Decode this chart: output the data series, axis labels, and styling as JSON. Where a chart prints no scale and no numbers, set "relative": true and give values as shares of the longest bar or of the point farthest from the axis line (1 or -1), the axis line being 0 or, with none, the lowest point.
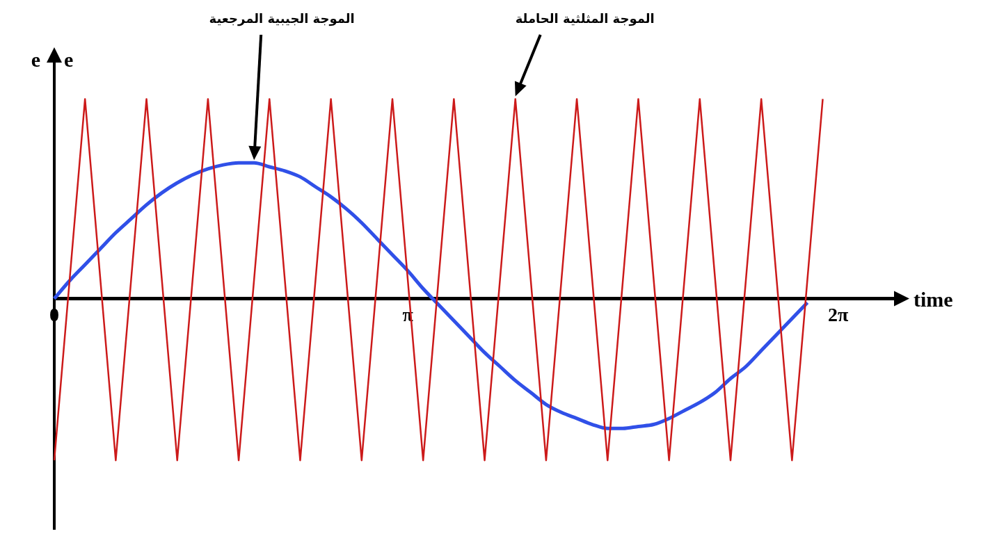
{
  "chart_data": {
    "type": "line",
    "relative": true,
    "xlabel": "time",
    "ylabel": "e",
    "categories": [
      "0",
      null,
      null,
      null,
      null,
      null,
      null,
      null,
      null,
      null,
      null,
      null,
      null,
      null,
      null,
      null,
      null,
      null,
      null,
      null,
      null,
      null,
      null,
      "π",
      null,
      null,
      null,
      null,
      null,
      null,
      null,
      null,
      null,
      null,
      null,
      null,
      null,
      null,
      null,
      null,
      null,
      null,
      null,
      null,
      null,
      null,
      null,
      null,
      null,
      null,
      null,
      "2π",
      null,
      null,
      null,
      null
    ],
    "grid": false,
    "legend": false,
    "marker": "none",
    "line_style": "solid",
    "series": [
      {
        "color": "#cc1a1a",
        "values": [
          -0.81,
          0.095,
          1,
          0.095,
          -0.81,
          0.095,
          1,
          0.095,
          -0.81,
          0.095,
          1,
          0.095,
          -0.81,
          0.095,
          1,
          0.095,
          -0.81,
          0.095,
          1,
          0.095,
          -0.81,
          0.095,
          1,
          0.095,
          -0.81,
          0.095,
          1,
          0.095,
          -0.81,
          0.095,
          1,
          0.095,
          -0.81,
          0.095,
          1,
          0.095,
          -0.81,
          0.095,
          1,
          0.095,
          -0.81,
          0.095,
          1,
          0.095,
          -0.81,
          0.095,
          1,
          0.095,
          -0.81,
          0.095,
          1,
          null,
          null,
          null,
          null,
          null
        ]
      },
      {
        "color": "#3050e8",
        "values": [
          0,
          0.09,
          0.17,
          0.25,
          0.33,
          0.4,
          0.47,
          0.53,
          0.58,
          0.62,
          0.65,
          0.67,
          0.68,
          0.68,
          0.66,
          0.64,
          0.61,
          0.56,
          0.51,
          0.45,
          0.38,
          0.3,
          0.22,
          0.14,
          0.05,
          -0.03,
          -0.11,
          -0.19,
          -0.27,
          -0.34,
          -0.41,
          -0.47,
          -0.53,
          -0.57,
          -0.6,
          -0.63,
          -0.65,
          -0.65,
          -0.64,
          -0.63,
          -0.6,
          -0.56,
          -0.52,
          -0.47,
          -0.4,
          -0.34,
          -0.26,
          -0.18,
          -0.1,
          -0.02,
          null,
          null,
          null,
          null,
          null,
          null
        ]
      }
    ],
    "annotations": [
      "e",
      "الموجة الجيبية المرجعية",
      "الموجة المثلثية الحاملة"
    ]
  }
}
